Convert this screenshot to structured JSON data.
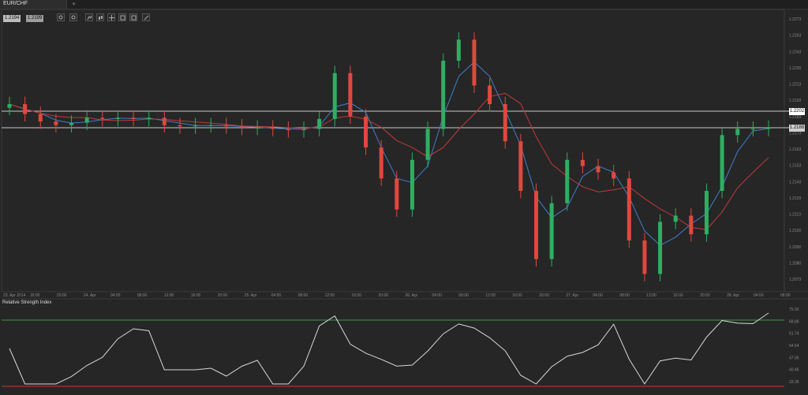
{
  "window": {
    "tab_title": "EUR/CHF",
    "add_tab": "+"
  },
  "quote": {
    "bid": "1.2194",
    "ask": "1.2199"
  },
  "toolbar": {
    "icons": [
      "zoom-in-icon",
      "zoom-out-icon",
      "indicators-icon",
      "chart-type-icon",
      "crosshair-icon",
      "draw-icon",
      "settings-icon",
      "pencil-icon"
    ]
  },
  "price_axis": {
    "ticks": [
      "1.2273",
      "1.2263",
      "1.2243",
      "1.2230",
      "1.2213",
      "1.2193",
      "1.2183",
      "1.2173",
      "1.2163",
      "1.2153",
      "1.2143",
      "1.2133",
      "1.2113",
      "1.2100",
      "1.2090",
      "1.2080",
      "1.2073"
    ]
  },
  "price_lines": {
    "upper": "1.2202",
    "lower": "1.2188"
  },
  "time_axis": {
    "labels": [
      "23. Apr 2014",
      "16:00",
      "20:00",
      "24. Apr",
      "04:00",
      "08:00",
      "12:00",
      "16:00",
      "20:00",
      "25. Apr",
      "04:00",
      "08:00",
      "12:00",
      "16:00",
      "20:00",
      "26. Apr",
      "04:00",
      "08:00",
      "12:00",
      "16:00",
      "20:00",
      "27. Apr",
      "04:00",
      "08:00",
      "12:00",
      "16:00",
      "20:00",
      "28. Apr",
      "04:00",
      "08:00"
    ]
  },
  "rsi": {
    "title": "Relative Strength Index",
    "ticks": [
      "75.92",
      "68.86",
      "61.74",
      "54.64",
      "47.56",
      "40.46",
      "33.36"
    ]
  },
  "colors": {
    "background": "#262626",
    "bull": "#2fae62",
    "bear": "#e0483e",
    "ma_fast": "#3f7fc9",
    "ma_slow": "#c03a3a",
    "rsi_line": "#d8d8d8",
    "level_line": "#c8c8c8"
  },
  "chart_data": {
    "type": "candlestick",
    "series": [
      {
        "name": "EUR/CHF",
        "close": [
          1.221,
          1.2202,
          1.2196,
          1.2193,
          1.2195,
          1.2199,
          1.2198,
          1.2199,
          1.2198,
          1.2199,
          1.2193,
          1.2192,
          1.2193,
          1.2193,
          1.2192,
          1.2191,
          1.2191,
          1.219,
          1.2189,
          1.219,
          1.2198,
          1.2235,
          1.22,
          1.2175,
          1.215,
          1.2125,
          1.2165,
          1.219,
          1.2245,
          1.2262,
          1.2225,
          1.221,
          1.218,
          1.214,
          1.2085,
          1.213,
          1.2165,
          1.216,
          1.2155,
          1.215,
          1.21,
          1.2073,
          1.2115,
          1.212,
          1.2105,
          1.214,
          1.2185,
          1.219,
          1.219,
          1.2191
        ]
      }
    ],
    "ylim": [
      1.2065,
      1.228
    ]
  }
}
